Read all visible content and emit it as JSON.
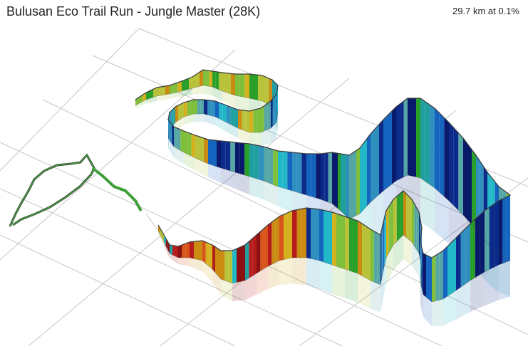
{
  "header": {
    "title": "Bulusan Eco Trail Run - Jungle Master (28K)",
    "status": "29.7 km at 0.1%"
  },
  "colors": {
    "grid": "#c6c6c6",
    "trail_outline": "#3b3b3b",
    "flat_trail": "#3f9e3a",
    "ribbon_palette": [
      "#2aa02a",
      "#7fbf3a",
      "#b8c23a",
      "#d4b21f",
      "#c98b12",
      "#d8551a",
      "#b71c1c",
      "#8b1010",
      "#1f9f9f",
      "#22b8c8",
      "#2f8fbf",
      "#1565c0",
      "#0b2a8a",
      "#0a1a6b",
      "#56a6a6"
    ]
  }
}
